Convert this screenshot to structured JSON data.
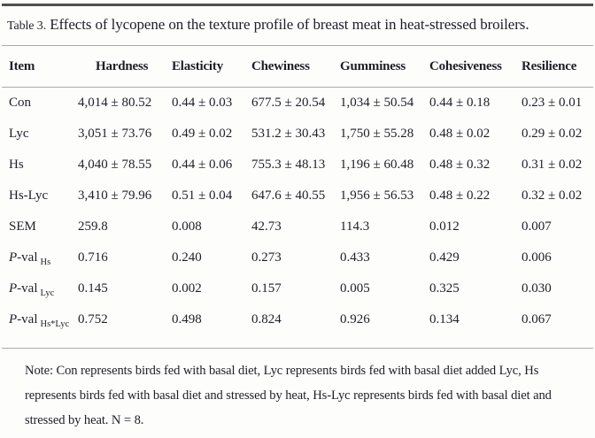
{
  "title": {
    "label": "Table 3.",
    "text": "Effects of lycopene on the texture profile of breast meat in heat-stressed broilers."
  },
  "table": {
    "columns": [
      "Item",
      "Hardness",
      "Elasticity",
      "Chewiness",
      "Gumminess",
      "Cohesiveness",
      "Resilience"
    ],
    "rows": [
      {
        "item": "Con",
        "values": [
          "4,014 ± 80.52",
          "0.44 ± 0.03",
          "677.5 ± 20.54",
          "1,034 ± 50.54",
          "0.44 ± 0.18",
          "0.23 ± 0.01"
        ]
      },
      {
        "item": "Lyc",
        "values": [
          "3,051 ± 73.76",
          "0.49 ± 0.02",
          "531.2 ± 30.43",
          "1,750 ± 55.28",
          "0.48 ± 0.02",
          "0.29 ± 0.02"
        ]
      },
      {
        "item": "Hs",
        "values": [
          "4,040 ± 78.55",
          "0.44 ± 0.06",
          "755.3 ± 48.13",
          "1,196 ± 60.48",
          "0.48 ± 0.32",
          "0.31 ± 0.02"
        ]
      },
      {
        "item": "Hs-Lyc",
        "values": [
          "3,410 ± 79.96",
          "0.51 ± 0.04",
          "647.6 ± 40.55",
          "1,956 ± 56.53",
          "0.48 ± 0.22",
          "0.32 ± 0.02"
        ]
      },
      {
        "item": "SEM",
        "values": [
          "259.8",
          "0.008",
          "42.73",
          "114.3",
          "0.012",
          "0.007"
        ]
      },
      {
        "item_prefix": "P",
        "item_rest": "-val",
        "sub": "Hs",
        "values": [
          "0.716",
          "0.240",
          "0.273",
          "0.433",
          "0.429",
          "0.006"
        ]
      },
      {
        "item_prefix": "P",
        "item_rest": "-val",
        "sub": "Lyc",
        "values": [
          "0.145",
          "0.002",
          "0.157",
          "0.005",
          "0.325",
          "0.030"
        ]
      },
      {
        "item_prefix": "P",
        "item_rest": "-val",
        "sub": "Hs*Lyc",
        "values": [
          "0.752",
          "0.498",
          "0.824",
          "0.926",
          "0.134",
          "0.067"
        ]
      }
    ]
  },
  "note": "Note: Con represents birds fed with basal diet, Lyc represents birds fed with basal diet added Lyc, Hs represents birds fed with basal diet and stressed by heat, Hs-Lyc represents birds fed with basal diet and stressed by heat. N = 8."
}
